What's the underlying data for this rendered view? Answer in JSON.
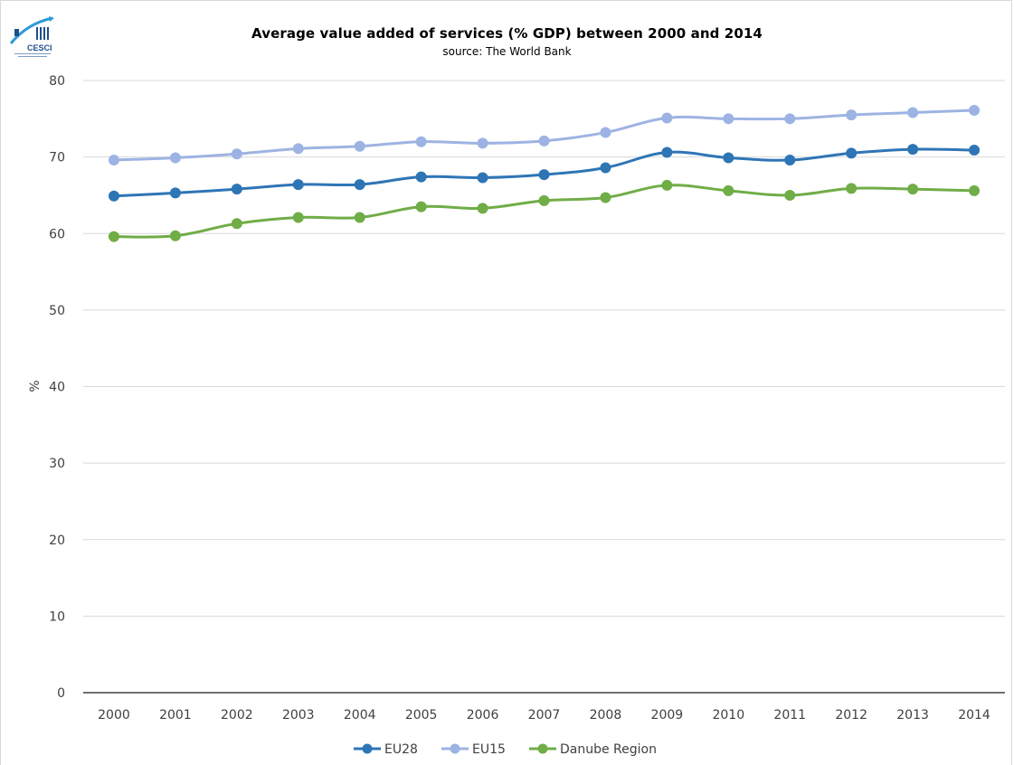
{
  "logo": {
    "text": "CESCI",
    "icon": "cesci-logo-icon"
  },
  "chart_data": {
    "type": "line",
    "title": "Average value added of services (% GDP) between 2000 and 2014",
    "subtitle": "source: The World Bank",
    "xlabel": "",
    "ylabel": "%",
    "ylim": [
      0,
      80
    ],
    "yticks": [
      0,
      10,
      20,
      30,
      40,
      50,
      60,
      70,
      80
    ],
    "grid": true,
    "legend_position": "bottom",
    "categories": [
      "2000",
      "2001",
      "2002",
      "2003",
      "2004",
      "2005",
      "2006",
      "2007",
      "2008",
      "2009",
      "2010",
      "2011",
      "2012",
      "2013",
      "2014"
    ],
    "series": [
      {
        "name": "EU28",
        "color": "#2e75b6",
        "values": [
          64.9,
          65.3,
          65.8,
          66.4,
          66.4,
          67.4,
          67.3,
          67.7,
          68.6,
          70.6,
          69.9,
          69.6,
          70.5,
          71.0,
          70.9
        ]
      },
      {
        "name": "EU15",
        "color": "#9db3e3",
        "values": [
          69.6,
          69.9,
          70.4,
          71.1,
          71.4,
          72.0,
          71.8,
          72.1,
          73.2,
          75.1,
          75.0,
          75.0,
          75.5,
          75.8,
          76.1
        ]
      },
      {
        "name": "Danube Region",
        "color": "#70ad47",
        "values": [
          59.6,
          59.7,
          61.3,
          62.1,
          62.1,
          63.5,
          63.3,
          64.3,
          64.7,
          66.3,
          65.6,
          65.0,
          65.9,
          65.8,
          65.6
        ]
      }
    ]
  }
}
